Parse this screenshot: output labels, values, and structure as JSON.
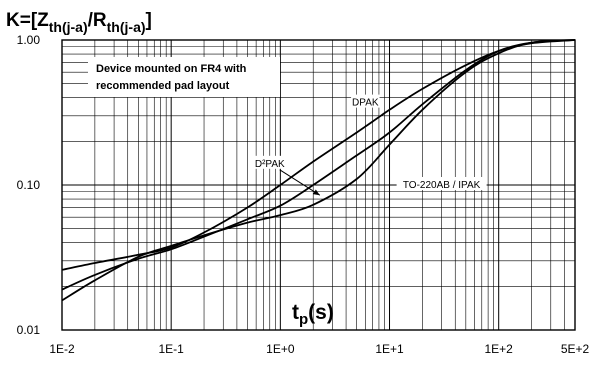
{
  "chart_data": {
    "type": "line",
    "title_prefix": "K=[Z",
    "title_sub1": "th(j-a)",
    "title_mid": "/R",
    "title_sub2": "th(j-a)",
    "title_suffix": "]",
    "xlabel_main": "t",
    "xlabel_sub": "p",
    "xlabel_unit": "(s)",
    "x_scale": "log",
    "y_scale": "log",
    "xlim": [
      0.01,
      500
    ],
    "ylim": [
      0.01,
      1
    ],
    "x_ticks": [
      {
        "value": 0.01,
        "label": "1E-2"
      },
      {
        "value": 0.1,
        "label": "1E-1"
      },
      {
        "value": 1,
        "label": "1E+0"
      },
      {
        "value": 10,
        "label": "1E+1"
      },
      {
        "value": 100,
        "label": "1E+2"
      },
      {
        "value": 500,
        "label": "5E+2"
      }
    ],
    "y_ticks": [
      {
        "value": 0.01,
        "label": "0.01"
      },
      {
        "value": 0.1,
        "label": "0.10"
      },
      {
        "value": 1,
        "label": "1.00"
      }
    ],
    "grid": true,
    "note_line1": "Device mounted on FR4 with",
    "note_line2": "recommended pad layout",
    "series": [
      {
        "name": "DPAK",
        "label_at": [
          6,
          0.37
        ],
        "x": [
          0.01,
          0.02,
          0.05,
          0.1,
          0.2,
          0.5,
          1,
          2,
          5,
          10,
          20,
          50,
          100,
          200,
          500
        ],
        "y": [
          0.026,
          0.029,
          0.033,
          0.037,
          0.047,
          0.07,
          0.1,
          0.145,
          0.23,
          0.33,
          0.46,
          0.67,
          0.84,
          0.95,
          1.0
        ]
      },
      {
        "name": "D²PAK",
        "label_at": [
          0.8,
          0.14
        ],
        "arrow_to": [
          2.3,
          0.085
        ],
        "x": [
          0.01,
          0.02,
          0.05,
          0.1,
          0.2,
          0.5,
          1,
          2,
          5,
          10,
          20,
          50,
          100,
          200,
          500
        ],
        "y": [
          0.019,
          0.024,
          0.031,
          0.036,
          0.044,
          0.058,
          0.072,
          0.1,
          0.16,
          0.23,
          0.36,
          0.62,
          0.84,
          0.96,
          1.0
        ]
      },
      {
        "name": "TO-220AB / IPAK",
        "label_at": [
          30,
          0.1
        ],
        "x": [
          0.01,
          0.02,
          0.05,
          0.1,
          0.2,
          0.5,
          1,
          2,
          5,
          10,
          20,
          50,
          100,
          200,
          500
        ],
        "y": [
          0.016,
          0.022,
          0.032,
          0.038,
          0.045,
          0.055,
          0.062,
          0.073,
          0.11,
          0.19,
          0.33,
          0.6,
          0.81,
          0.96,
          1.0
        ]
      }
    ]
  }
}
